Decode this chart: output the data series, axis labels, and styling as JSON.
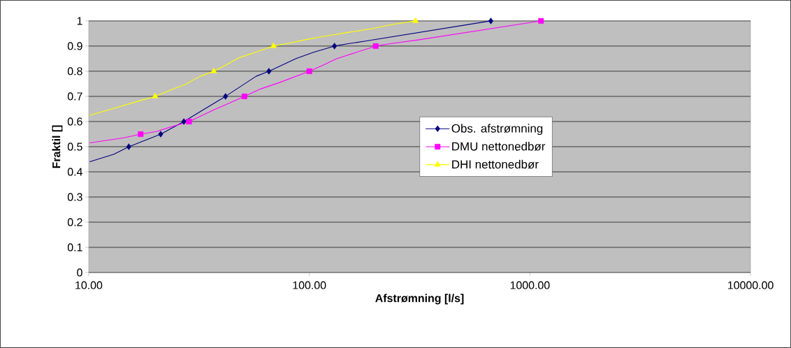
{
  "chart_data": {
    "type": "line",
    "xlabel": "Afstrømning [l/s]",
    "ylabel": "Fraktil []",
    "log": "x",
    "xlim": [
      10,
      10000
    ],
    "xticks": [
      {
        "value": 10,
        "label": "10.00"
      },
      {
        "value": 100,
        "label": "100.00"
      },
      {
        "value": 1000,
        "label": "1000.00"
      },
      {
        "value": 10000,
        "label": "10000.00"
      }
    ],
    "ylim": [
      0,
      1
    ],
    "yticks": [
      0,
      0.1,
      0.2,
      0.3,
      0.4,
      0.5,
      0.6,
      0.7,
      0.8,
      0.9,
      1
    ],
    "grid": "y",
    "legend": "center",
    "series": [
      {
        "color": "#000080",
        "marker": "none",
        "x": [
          10.1,
          13.0,
          15.2,
          21.2,
          27.0,
          32.8,
          41.7,
          57.4,
          65.6,
          86.8,
          104,
          130,
          152,
          180,
          665
        ],
        "values": [
          0.44,
          0.47,
          0.5,
          0.55,
          0.6,
          0.645,
          0.7,
          0.78,
          0.8,
          0.85,
          0.875,
          0.9,
          0.91,
          0.92,
          1
        ]
      },
      {
        "color": "#ff00ff",
        "marker": "none",
        "x": [
          10.1,
          14.4,
          17.2,
          20.2,
          23.9,
          28.5,
          36.6,
          50.8,
          60.3,
          73.2,
          100,
          116,
          133,
          200,
          236,
          315,
          1122
        ],
        "values": [
          0.515,
          0.535,
          0.55,
          0.56,
          0.58,
          0.6,
          0.645,
          0.7,
          0.73,
          0.755,
          0.8,
          0.825,
          0.85,
          0.9,
          0.91,
          0.925,
          1
        ]
      },
      {
        "color": "#ffff00",
        "marker": "none",
        "x": [
          10.1,
          12.7,
          16.6,
          20.0,
          27.7,
          32.0,
          36.9,
          41.9,
          48.5,
          56.8,
          68.8,
          79.7,
          95.7,
          119,
          152,
          194,
          236,
          303
        ],
        "values": [
          0.625,
          0.65,
          0.68,
          0.7,
          0.75,
          0.78,
          0.8,
          0.825,
          0.855,
          0.875,
          0.9,
          0.91,
          0.925,
          0.94,
          0.955,
          0.97,
          0.985,
          1
        ]
      },
      {
        "type": "scatter",
        "name": "Obs. afstrømning",
        "color": "#000080",
        "marker": "diamond",
        "x": [
          15.2,
          21.2,
          27.0,
          41.7,
          65.6,
          130,
          665
        ],
        "values": [
          0.5,
          0.55,
          0.6,
          0.7,
          0.8,
          0.9,
          1
        ]
      },
      {
        "type": "scatter",
        "name": "DMU nettonedbør",
        "color": "#ff00ff",
        "marker": "square",
        "x": [
          17.2,
          28.5,
          50.8,
          100,
          200,
          1122
        ],
        "values": [
          0.55,
          0.6,
          0.7,
          0.8,
          0.9,
          1
        ]
      },
      {
        "type": "scatter",
        "name": "DHI nettonedbør",
        "color": "#ffff00",
        "marker": "triangle",
        "x": [
          20.0,
          36.9,
          68.8,
          303
        ],
        "values": [
          0.7,
          0.8,
          0.9,
          1
        ]
      }
    ]
  }
}
